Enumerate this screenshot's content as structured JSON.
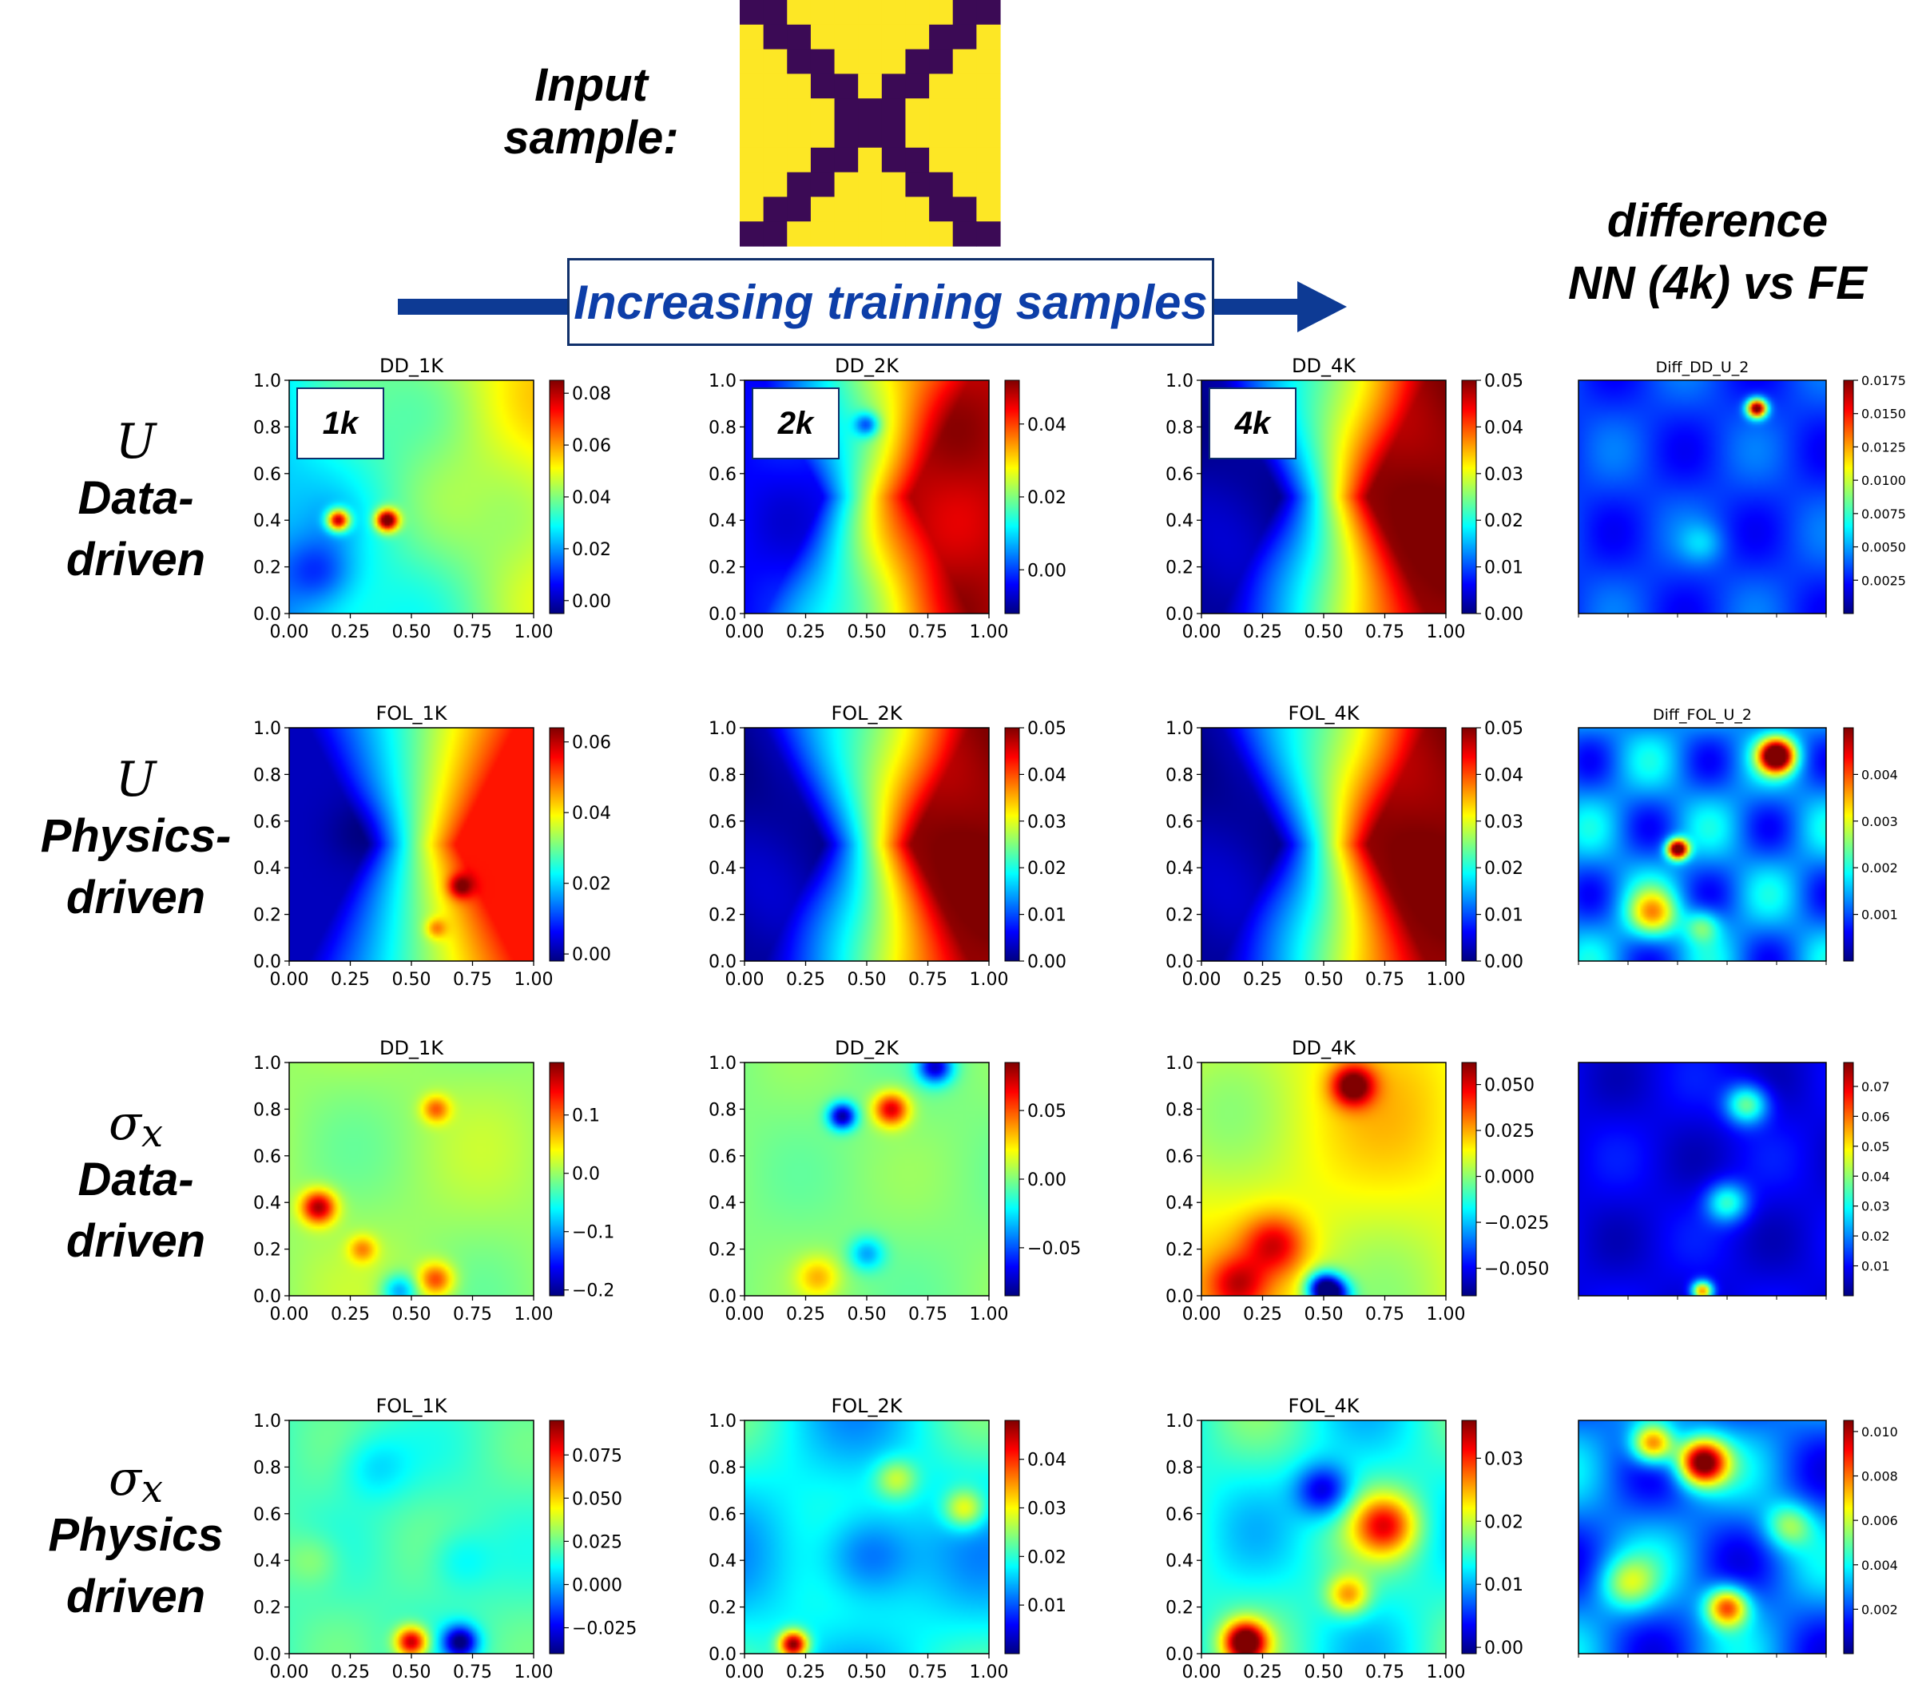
{
  "header": {
    "input_label_line1": "Input",
    "input_label_line2": "sample:",
    "banner_text": "Increasing training samples",
    "diff_title_line1": "difference",
    "diff_title_line2": "NN (4k) vs FE"
  },
  "row_labels": [
    {
      "symbol": "U",
      "line1": "Data-",
      "line2": "driven"
    },
    {
      "symbol": "U",
      "line1": "Physics-",
      "line2": "driven"
    },
    {
      "symbol": "σx",
      "line1": "Data-",
      "line2": "driven"
    },
    {
      "symbol": "σx",
      "line1": "Physics",
      "line2": "driven"
    }
  ],
  "input_sample": {
    "colors": {
      "fiber": "#3b0a55",
      "matrix": "#fde725"
    },
    "grid": [
      [
        1,
        1,
        0,
        0,
        0,
        0,
        0,
        0,
        0,
        1,
        1
      ],
      [
        0,
        1,
        1,
        0,
        0,
        0,
        0,
        0,
        1,
        1,
        0
      ],
      [
        0,
        0,
        1,
        1,
        0,
        0,
        0,
        1,
        1,
        0,
        0
      ],
      [
        0,
        0,
        0,
        1,
        1,
        0,
        1,
        1,
        0,
        0,
        0
      ],
      [
        0,
        0,
        0,
        0,
        1,
        1,
        1,
        0,
        0,
        0,
        0
      ],
      [
        0,
        0,
        0,
        0,
        1,
        1,
        1,
        0,
        0,
        0,
        0
      ],
      [
        0,
        0,
        0,
        1,
        1,
        0,
        1,
        1,
        0,
        0,
        0
      ],
      [
        0,
        0,
        1,
        1,
        0,
        0,
        0,
        1,
        1,
        0,
        0
      ],
      [
        0,
        1,
        1,
        0,
        0,
        0,
        0,
        0,
        1,
        1,
        0
      ],
      [
        1,
        1,
        0,
        0,
        0,
        0,
        0,
        0,
        0,
        1,
        1
      ]
    ]
  },
  "accent_colors": {
    "arrow": "#0d3a94",
    "banner_text": "#0d3ea8"
  },
  "chart_data": [
    {
      "type": "heatmap",
      "title": "DD_1K",
      "field": "dd_u_1k",
      "badge": "1k",
      "xticks": [
        "0.00",
        "0.25",
        "0.50",
        "0.75",
        "1.00"
      ],
      "yticks": [
        "0.0",
        "0.2",
        "0.4",
        "0.6",
        "0.8",
        "1.0"
      ],
      "cbar_range": [
        -0.005,
        0.085
      ],
      "cbar_ticks": [
        0.0,
        0.02,
        0.04,
        0.06,
        0.08
      ],
      "cbar_labels": [
        "0.00",
        "0.02",
        "0.04",
        "0.06",
        "0.08"
      ]
    },
    {
      "type": "heatmap",
      "title": "DD_2K",
      "field": "dd_u_2k",
      "badge": "2k",
      "xticks": [
        "0.00",
        "0.25",
        "0.50",
        "0.75",
        "1.00"
      ],
      "yticks": [
        "0.0",
        "0.2",
        "0.4",
        "0.6",
        "0.8",
        "1.0"
      ],
      "cbar_range": [
        -0.012,
        0.052
      ],
      "cbar_ticks": [
        0.0,
        0.02,
        0.04
      ],
      "cbar_labels": [
        "0.00",
        "0.02",
        "0.04"
      ]
    },
    {
      "type": "heatmap",
      "title": "DD_4K",
      "field": "u_4k",
      "badge": "4k",
      "xticks": [
        "0.00",
        "0.25",
        "0.50",
        "0.75",
        "1.00"
      ],
      "yticks": [
        "0.0",
        "0.2",
        "0.4",
        "0.6",
        "0.8",
        "1.0"
      ],
      "cbar_range": [
        0.0,
        0.05
      ],
      "cbar_ticks": [
        0.0,
        0.01,
        0.02,
        0.03,
        0.04,
        0.05
      ],
      "cbar_labels": [
        "0.00",
        "0.01",
        "0.02",
        "0.03",
        "0.04",
        "0.05"
      ]
    },
    {
      "type": "heatmap",
      "title": "Diff_DD_U_2",
      "field": "diff_dd_u",
      "cbar_range": [
        0.0,
        0.0175
      ],
      "cbar_ticks": [
        0.0025,
        0.005,
        0.0075,
        0.01,
        0.0125,
        0.015,
        0.0175
      ],
      "cbar_labels": [
        "0.0025",
        "0.0050",
        "0.0075",
        "0.0100",
        "0.0125",
        "0.0150",
        "0.0175"
      ]
    },
    {
      "type": "heatmap",
      "title": "FOL_1K",
      "field": "fol_u_1k",
      "xticks": [
        "0.00",
        "0.25",
        "0.50",
        "0.75",
        "1.00"
      ],
      "yticks": [
        "0.0",
        "0.2",
        "0.4",
        "0.6",
        "0.8",
        "1.0"
      ],
      "cbar_range": [
        -0.002,
        0.064
      ],
      "cbar_ticks": [
        0.0,
        0.02,
        0.04,
        0.06
      ],
      "cbar_labels": [
        "0.00",
        "0.02",
        "0.04",
        "0.06"
      ]
    },
    {
      "type": "heatmap",
      "title": "FOL_2K",
      "field": "u_4k",
      "xticks": [
        "0.00",
        "0.25",
        "0.50",
        "0.75",
        "1.00"
      ],
      "yticks": [
        "0.0",
        "0.2",
        "0.4",
        "0.6",
        "0.8",
        "1.0"
      ],
      "cbar_range": [
        0.0,
        0.05
      ],
      "cbar_ticks": [
        0.0,
        0.01,
        0.02,
        0.03,
        0.04,
        0.05
      ],
      "cbar_labels": [
        "0.00",
        "0.01",
        "0.02",
        "0.03",
        "0.04",
        "0.05"
      ]
    },
    {
      "type": "heatmap",
      "title": "FOL_4K",
      "field": "u_4k",
      "xticks": [
        "0.00",
        "0.25",
        "0.50",
        "0.75",
        "1.00"
      ],
      "yticks": [
        "0.0",
        "0.2",
        "0.4",
        "0.6",
        "0.8",
        "1.0"
      ],
      "cbar_range": [
        0.0,
        0.05
      ],
      "cbar_ticks": [
        0.0,
        0.01,
        0.02,
        0.03,
        0.04,
        0.05
      ],
      "cbar_labels": [
        "0.00",
        "0.01",
        "0.02",
        "0.03",
        "0.04",
        "0.05"
      ]
    },
    {
      "type": "heatmap",
      "title": "Diff_FOL_U_2",
      "field": "diff_fol_u",
      "cbar_range": [
        0.0,
        0.005
      ],
      "cbar_ticks": [
        0.001,
        0.002,
        0.003,
        0.004
      ],
      "cbar_labels": [
        "0.001",
        "0.002",
        "0.003",
        "0.004"
      ]
    },
    {
      "type": "heatmap",
      "title": "DD_1K",
      "field": "dd_s_1k",
      "xticks": [
        "0.00",
        "0.25",
        "0.50",
        "0.75",
        "1.00"
      ],
      "yticks": [
        "0.0",
        "0.2",
        "0.4",
        "0.6",
        "0.8",
        "1.0"
      ],
      "cbar_range": [
        -0.21,
        0.19
      ],
      "cbar_ticks": [
        -0.2,
        -0.1,
        0.0,
        0.1
      ],
      "cbar_labels": [
        "−0.2",
        "−0.1",
        "0.0",
        "0.1"
      ]
    },
    {
      "type": "heatmap",
      "title": "DD_2K",
      "field": "dd_s_2k",
      "xticks": [
        "0.00",
        "0.25",
        "0.50",
        "0.75",
        "1.00"
      ],
      "yticks": [
        "0.0",
        "0.2",
        "0.4",
        "0.6",
        "0.8",
        "1.0"
      ],
      "cbar_range": [
        -0.085,
        0.085
      ],
      "cbar_ticks": [
        -0.05,
        0.0,
        0.05
      ],
      "cbar_labels": [
        "−0.05",
        "0.00",
        "0.05"
      ]
    },
    {
      "type": "heatmap",
      "title": "DD_4K",
      "field": "dd_s_4k",
      "xticks": [
        "0.00",
        "0.25",
        "0.50",
        "0.75",
        "1.00"
      ],
      "yticks": [
        "0.0",
        "0.2",
        "0.4",
        "0.6",
        "0.8",
        "1.0"
      ],
      "cbar_range": [
        -0.065,
        0.062
      ],
      "cbar_ticks": [
        -0.05,
        -0.025,
        0.0,
        0.025,
        0.05
      ],
      "cbar_labels": [
        "−0.050",
        "−0.025",
        "0.000",
        "0.025",
        "0.050"
      ]
    },
    {
      "type": "heatmap",
      "title": "",
      "field": "diff_dd_s",
      "cbar_range": [
        0.0,
        0.078
      ],
      "cbar_ticks": [
        0.01,
        0.02,
        0.03,
        0.04,
        0.05,
        0.06,
        0.07
      ],
      "cbar_labels": [
        "0.01",
        "0.02",
        "0.03",
        "0.04",
        "0.05",
        "0.06",
        "0.07"
      ]
    },
    {
      "type": "heatmap",
      "title": "FOL_1K",
      "field": "fol_s_1k",
      "xticks": [
        "0.00",
        "0.25",
        "0.50",
        "0.75",
        "1.00"
      ],
      "yticks": [
        "0.0",
        "0.2",
        "0.4",
        "0.6",
        "0.8",
        "1.0"
      ],
      "cbar_range": [
        -0.04,
        0.095
      ],
      "cbar_ticks": [
        -0.025,
        0.0,
        0.025,
        0.05,
        0.075
      ],
      "cbar_labels": [
        "−0.025",
        "0.000",
        "0.025",
        "0.050",
        "0.075"
      ]
    },
    {
      "type": "heatmap",
      "title": "FOL_2K",
      "field": "fol_s_2k",
      "xticks": [
        "0.00",
        "0.25",
        "0.50",
        "0.75",
        "1.00"
      ],
      "yticks": [
        "0.0",
        "0.2",
        "0.4",
        "0.6",
        "0.8",
        "1.0"
      ],
      "cbar_range": [
        0.0,
        0.048
      ],
      "cbar_ticks": [
        0.01,
        0.02,
        0.03,
        0.04
      ],
      "cbar_labels": [
        "0.01",
        "0.02",
        "0.03",
        "0.04"
      ]
    },
    {
      "type": "heatmap",
      "title": "FOL_4K",
      "field": "fol_s_4k",
      "xticks": [
        "0.00",
        "0.25",
        "0.50",
        "0.75",
        "1.00"
      ],
      "yticks": [
        "0.0",
        "0.2",
        "0.4",
        "0.6",
        "0.8",
        "1.0"
      ],
      "cbar_range": [
        -0.001,
        0.036
      ],
      "cbar_ticks": [
        0.0,
        0.01,
        0.02,
        0.03
      ],
      "cbar_labels": [
        "0.00",
        "0.01",
        "0.02",
        "0.03"
      ]
    },
    {
      "type": "heatmap",
      "title": "",
      "field": "diff_fol_s",
      "cbar_range": [
        0.0,
        0.0105
      ],
      "cbar_ticks": [
        0.002,
        0.004,
        0.006,
        0.008,
        0.01
      ],
      "cbar_labels": [
        "0.002",
        "0.004",
        "0.006",
        "0.008",
        "0.010"
      ]
    }
  ]
}
